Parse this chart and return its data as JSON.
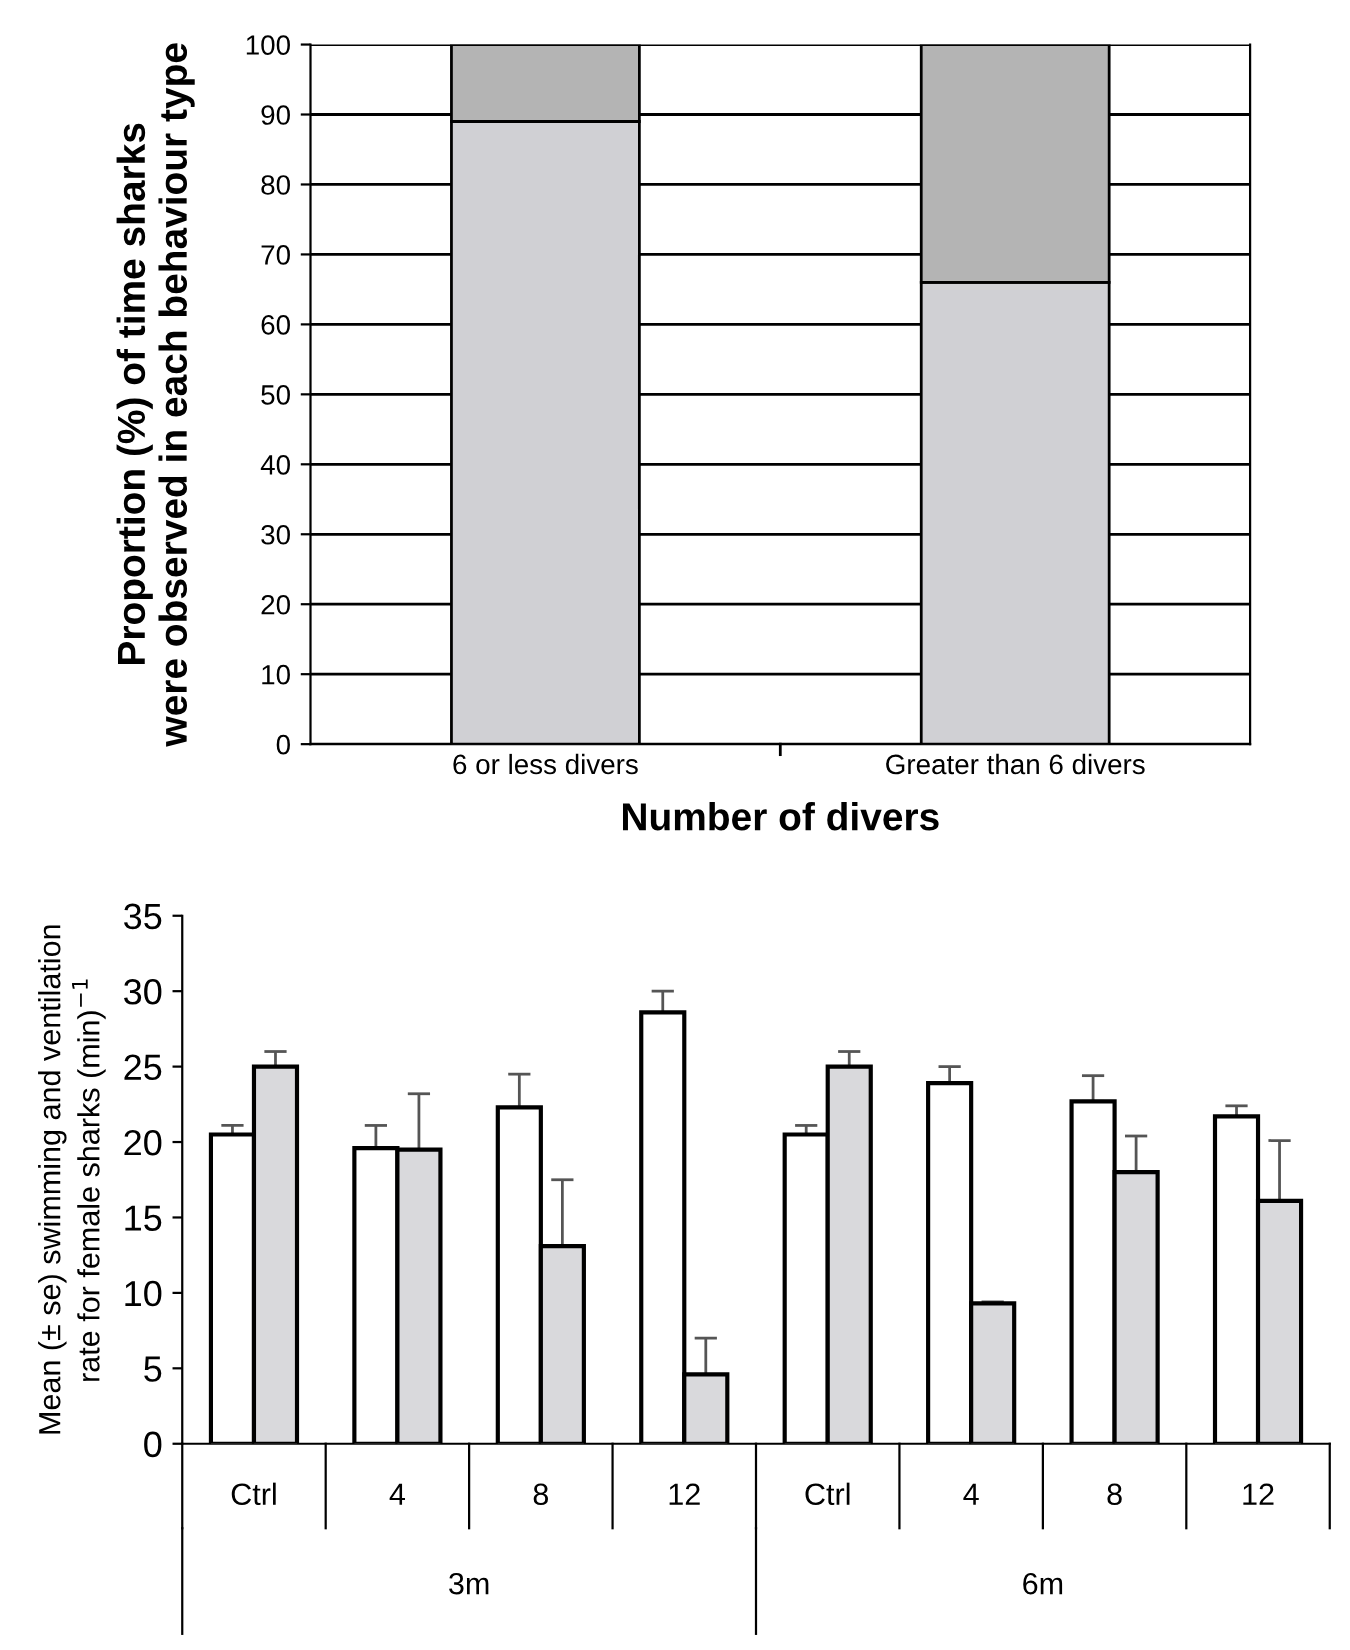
{
  "chart_data": [
    {
      "type": "bar",
      "stacked": true,
      "xlabel": "Number of divers",
      "ylabel": "Proportion (%) of time sharks\nwere observed in each behaviour type",
      "categories": [
        "6 or less divers",
        "Greater than 6 divers"
      ],
      "series": [
        {
          "color": "#d0d0d4",
          "values": [
            89,
            66
          ]
        },
        {
          "color": "#b4b4b4",
          "values": [
            11,
            34
          ]
        }
      ],
      "ylim": [
        0,
        100
      ],
      "yticks": [
        0,
        10,
        20,
        30,
        40,
        50,
        60,
        70,
        80,
        90,
        100
      ],
      "grid": "y",
      "legend": false
    },
    {
      "type": "bar",
      "ylabel": "Mean (± se) swimming and ventilation\nrate for female sharks (min)$^{−1}$",
      "categories": [
        "Ctrl",
        "4",
        "8",
        "12",
        "Ctrl",
        "4",
        "8",
        "12"
      ],
      "annotations": [
        "3m",
        "6m"
      ],
      "series": [
        {
          "color": "#ffffff",
          "values": [
            20.5,
            19.6,
            22.3,
            28.6,
            20.5,
            23.9,
            22.7,
            21.7
          ],
          "errors": [
            [
              20.5,
              21.1
            ],
            [
              19.6,
              21.1
            ],
            [
              22.3,
              24.5
            ],
            [
              28.6,
              30.0
            ],
            [
              20.5,
              21.1
            ],
            [
              23.9,
              25.0
            ],
            [
              22.7,
              24.4
            ],
            [
              21.7,
              22.4
            ]
          ]
        },
        {
          "color": "#d9d9dc",
          "values": [
            25.0,
            19.5,
            13.1,
            4.6,
            25.0,
            9.3,
            18.0,
            16.1
          ],
          "errors": [
            [
              25.0,
              26.0
            ],
            [
              19.5,
              23.2
            ],
            [
              13.1,
              17.5
            ],
            [
              4.6,
              7.0
            ],
            [
              25.0,
              26.0
            ],
            [
              9.3,
              9.4
            ],
            [
              18.0,
              20.4
            ],
            [
              16.1,
              20.1
            ]
          ]
        }
      ],
      "ylim": [
        0,
        35
      ],
      "yticks": [
        0,
        5,
        10,
        15,
        20,
        25,
        30,
        35
      ],
      "grid": false,
      "legend": false
    }
  ]
}
